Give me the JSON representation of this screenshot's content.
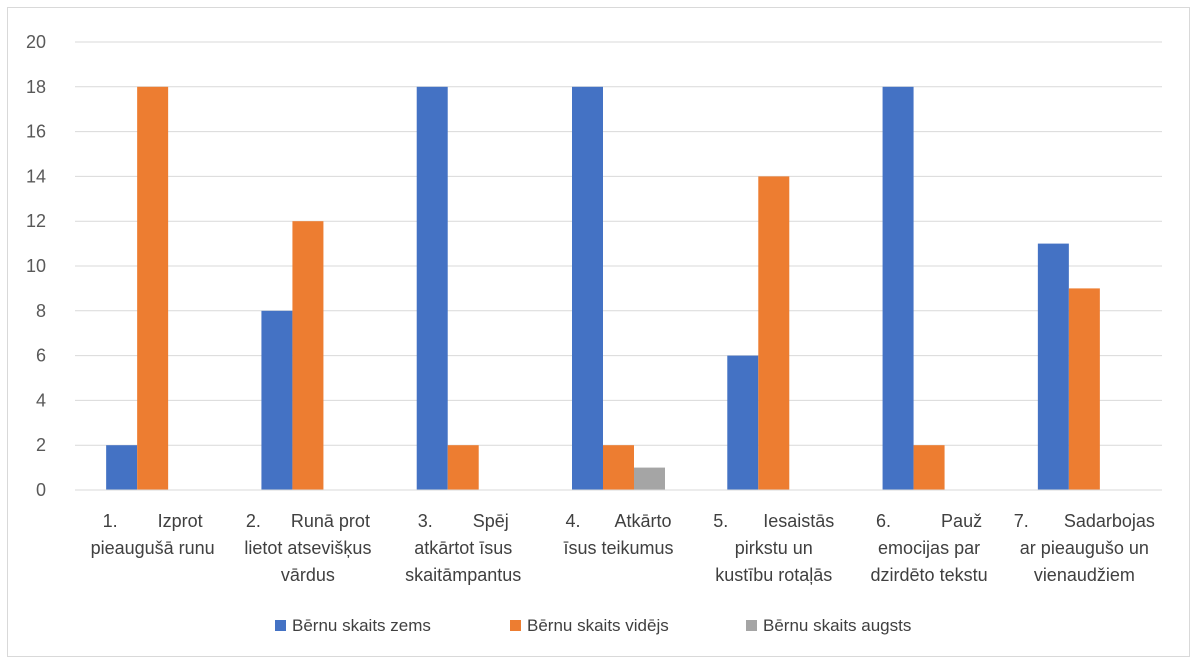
{
  "chart_data": {
    "type": "bar",
    "categories": [
      [
        "1.        Izprot",
        "pieaugušā runu"
      ],
      [
        "2.      Runā prot",
        "lietot atsevišķus",
        "vārdus"
      ],
      [
        "3.        Spēj",
        "atkārtot īsus",
        "skaitāmpantus"
      ],
      [
        "4.       Atkārto",
        "īsus teikumus"
      ],
      [
        "5.       Iesaistās",
        "pirkstu un",
        "kustību rotaļās"
      ],
      [
        "6.          Pauž",
        "emocijas par",
        "dzirdēto tekstu"
      ],
      [
        "7.       Sadarbojas",
        "ar pieaugušo un",
        "vienaudžiem"
      ]
    ],
    "series": [
      {
        "name": "Bērnu skaits zems",
        "color": "#4472c4",
        "values": [
          2,
          8,
          18,
          18,
          6,
          18,
          11
        ]
      },
      {
        "name": "Bērnu skaits vidējs",
        "color": "#ed7d31",
        "values": [
          18,
          12,
          2,
          2,
          14,
          2,
          9
        ]
      },
      {
        "name": "Bērnu skaits augsts",
        "color": "#a5a5a5",
        "values": [
          0,
          0,
          0,
          1,
          0,
          0,
          0
        ]
      }
    ],
    "ylim": [
      0,
      20
    ],
    "yticks": [
      0,
      2,
      4,
      6,
      8,
      10,
      12,
      14,
      16,
      18,
      20
    ],
    "grid": true,
    "legend": "bottom"
  }
}
